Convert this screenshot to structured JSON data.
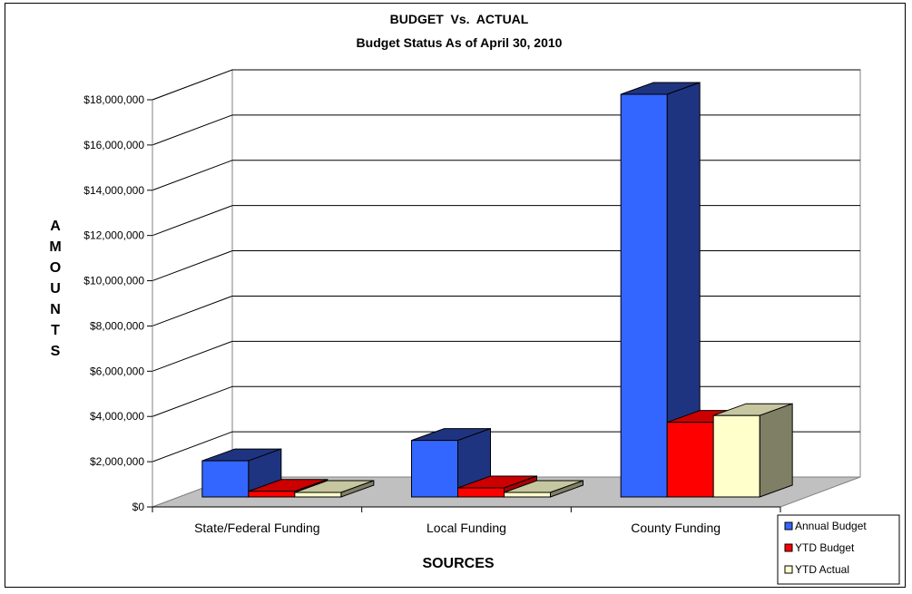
{
  "chart_data": {
    "type": "bar",
    "title": "BUDGET  Vs.  ACTUAL",
    "subtitle": "Budget Status As of April 30, 2010",
    "xlabel": "SOURCES",
    "ylabel": "AMOUNTS",
    "categories": [
      "State/Federal Funding",
      "Local Funding",
      "County Funding"
    ],
    "series": [
      {
        "name": "Annual Budget",
        "values": [
          1600000,
          2500000,
          17800000
        ],
        "color": "#3366ff",
        "side": "#1f3480",
        "top": "#1f3480"
      },
      {
        "name": "YTD Budget",
        "values": [
          250000,
          400000,
          3300000
        ],
        "color": "#ff0000",
        "side": "#aa0000",
        "top": "#cc0000"
      },
      {
        "name": "YTD Actual",
        "values": [
          200000,
          200000,
          3600000
        ],
        "color": "#ffffcc",
        "side": "#7f7f66",
        "top": "#c6c6a0"
      }
    ],
    "ylim": [
      0,
      18000000
    ],
    "yticks": [
      "$0",
      "$2,000,000",
      "$4,000,000",
      "$6,000,000",
      "$8,000,000",
      "$10,000,000",
      "$12,000,000",
      "$14,000,000",
      "$16,000,000",
      "$18,000,000"
    ],
    "grid": true,
    "legend_position": "bottom-right",
    "style": "3d-bar"
  }
}
